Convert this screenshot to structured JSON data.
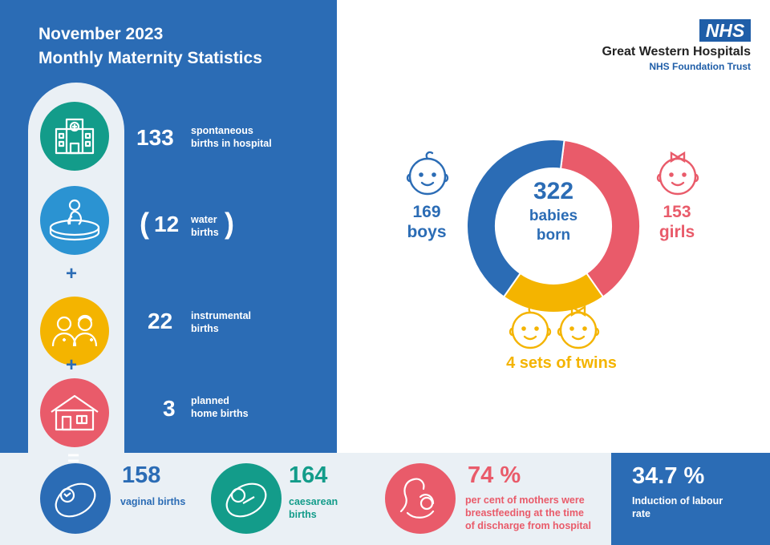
{
  "header": {
    "title_line1": "November 2023",
    "title_line2": "Monthly Maternity Statistics"
  },
  "org": {
    "logo_text": "NHS",
    "name": "Great Western Hospitals",
    "subtitle": "NHS Foundation Trust"
  },
  "stats": [
    {
      "value": "133",
      "label_line1": "spontaneous",
      "label_line2": "births in hospital",
      "icon": "hospital-icon"
    },
    {
      "value": "12",
      "label_line1": "water",
      "label_line2": "births",
      "icon": "birthing-pool-icon",
      "paren_open": "(",
      "paren_close": ")"
    },
    {
      "value": "22",
      "label_line1": "instrumental",
      "label_line2": "births",
      "icon": "clinicians-icon"
    },
    {
      "value": "3",
      "label_line1": "planned",
      "label_line2": "home births",
      "icon": "house-icon"
    }
  ],
  "operators": {
    "plus": "+",
    "equals": "="
  },
  "babies": {
    "total": "322",
    "total_label_line1": "babies",
    "total_label_line2": "born",
    "boys_value": "169",
    "boys_label": "boys",
    "girls_value": "153",
    "girls_label": "girls",
    "twins_label": "4 sets of twins"
  },
  "chart_data": {
    "type": "pie",
    "categories": [
      "boys",
      "girls",
      "twins"
    ],
    "values": [
      169,
      153,
      4
    ],
    "colors": [
      "#2b6cb5",
      "#e95b6a",
      "#f4b400"
    ]
  },
  "bottom": {
    "vaginal_value": "158",
    "vaginal_label": "vaginal births",
    "caesarean_value": "164",
    "caesarean_label_line1": "caesarean",
    "caesarean_label_line2": "births",
    "breastfeeding_value": "74 %",
    "breastfeeding_label_line1": "per cent of mothers were",
    "breastfeeding_label_line2": "breastfeeding at the time",
    "breastfeeding_label_line3": "of discharge from hospital",
    "induction_value": "34.7 %",
    "induction_label_line1": "Induction of labour",
    "induction_label_line2": "rate"
  },
  "colors": {
    "primary_blue": "#2b6cb5",
    "teal": "#139c8a",
    "light_blue": "#2b93d2",
    "yellow": "#f4b400",
    "pink": "#e95b6a",
    "pale_bg": "#eaf0f5"
  }
}
